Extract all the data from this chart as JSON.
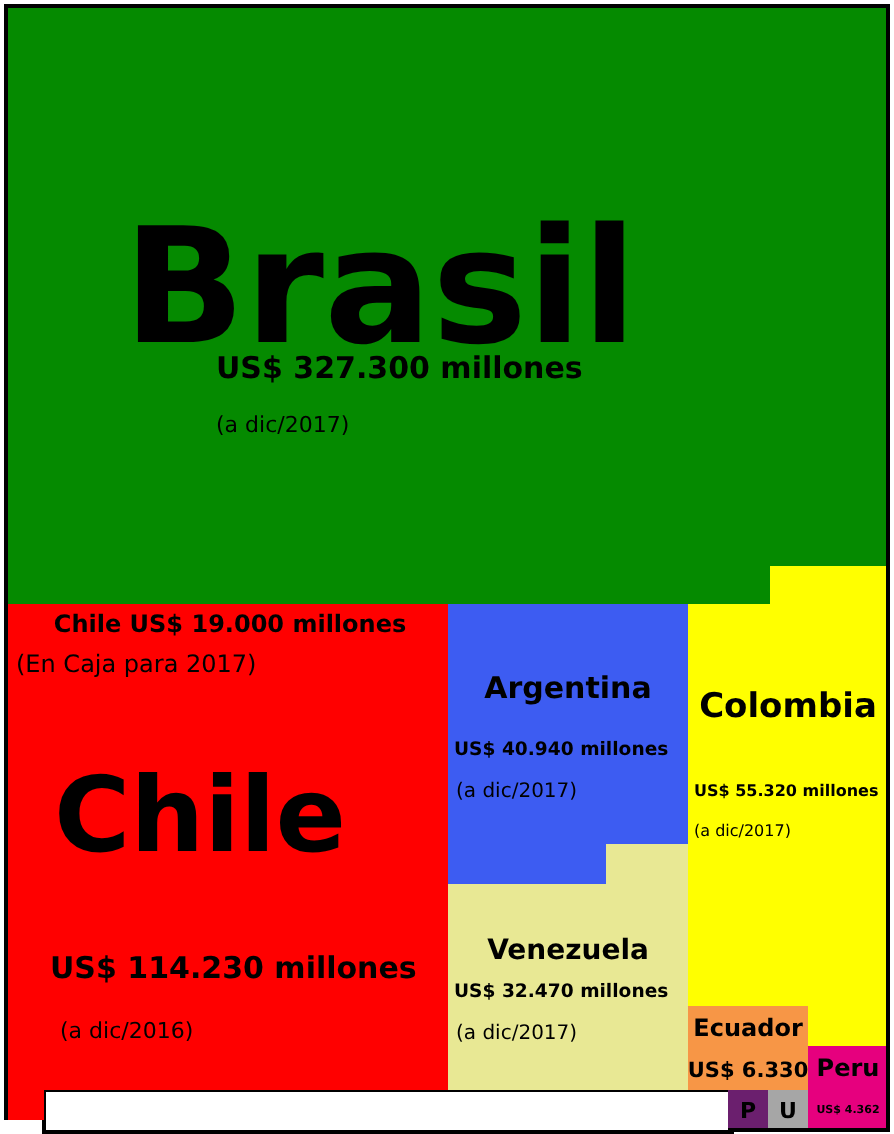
{
  "chart_data": {
    "type": "other",
    "categories": [
      "Brasil",
      "Chile",
      "Argentina",
      "Colombia",
      "Venezuela",
      "Ecuador",
      "Peru",
      "P",
      "U"
    ],
    "values": [
      327300,
      114230,
      40940,
      55320,
      32470,
      6330,
      4362,
      null,
      null
    ],
    "value_labels": [
      "US$ 327.300 millones",
      "US$ 114.230 millones",
      "US$ 40.940 millones",
      "US$ 55.320 millones",
      "US$ 32.470 millones",
      "US$ 6.330",
      "US$ 4.362",
      null,
      null
    ],
    "colors": [
      "#058a00",
      "#ff0000",
      "#3d5cf2",
      "#ffff00",
      "#e8e894",
      "#f79646",
      "#e6007e",
      "#6b1f6e",
      "#a6a6a6"
    ],
    "annotations": [
      {
        "text": "(a dic/2017)",
        "x": "Brasil"
      },
      {
        "text": "Chile US$ 19.000 millones",
        "x": "Chile"
      },
      {
        "text": "(En Caja para 2017)",
        "x": "Chile"
      },
      {
        "text": "(a dic/2016)",
        "x": "Chile"
      },
      {
        "text": "(a dic/2017)",
        "x": "Argentina"
      },
      {
        "text": "(a dic/2017)",
        "x": "Colombia"
      },
      {
        "text": "(a dic/2017)",
        "x": "Venezuela"
      }
    ]
  }
}
